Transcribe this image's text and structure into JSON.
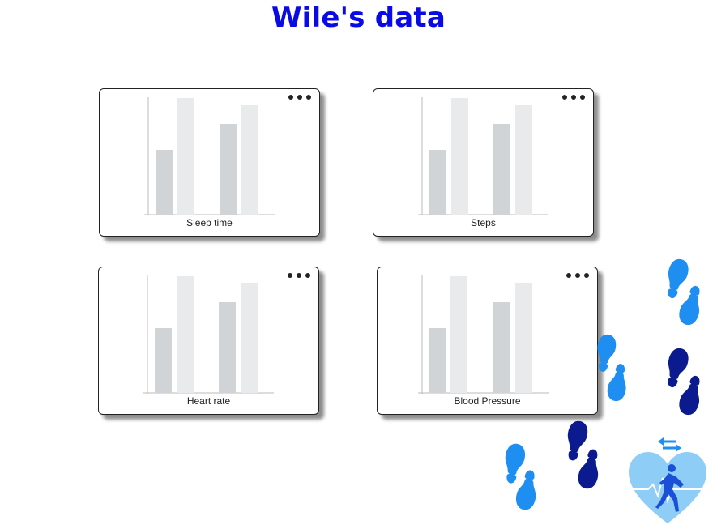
{
  "page": {
    "title": "Wile's data"
  },
  "cards": [
    {
      "label": "Sleep time"
    },
    {
      "label": "Steps"
    },
    {
      "label": "Heart rate"
    },
    {
      "label": "Blood Pressure"
    }
  ],
  "colors": {
    "title": "#0a0ae6",
    "bar_dark": "#d1d4d7",
    "bar_light": "#e9eaec",
    "footprint_dark": "#0b1a8f",
    "footprint_light": "#1e8ef0",
    "heart": "#8ecdf5"
  },
  "icons": [
    "more-options-icon",
    "footprints-icon",
    "heart-runner-icon"
  ]
}
